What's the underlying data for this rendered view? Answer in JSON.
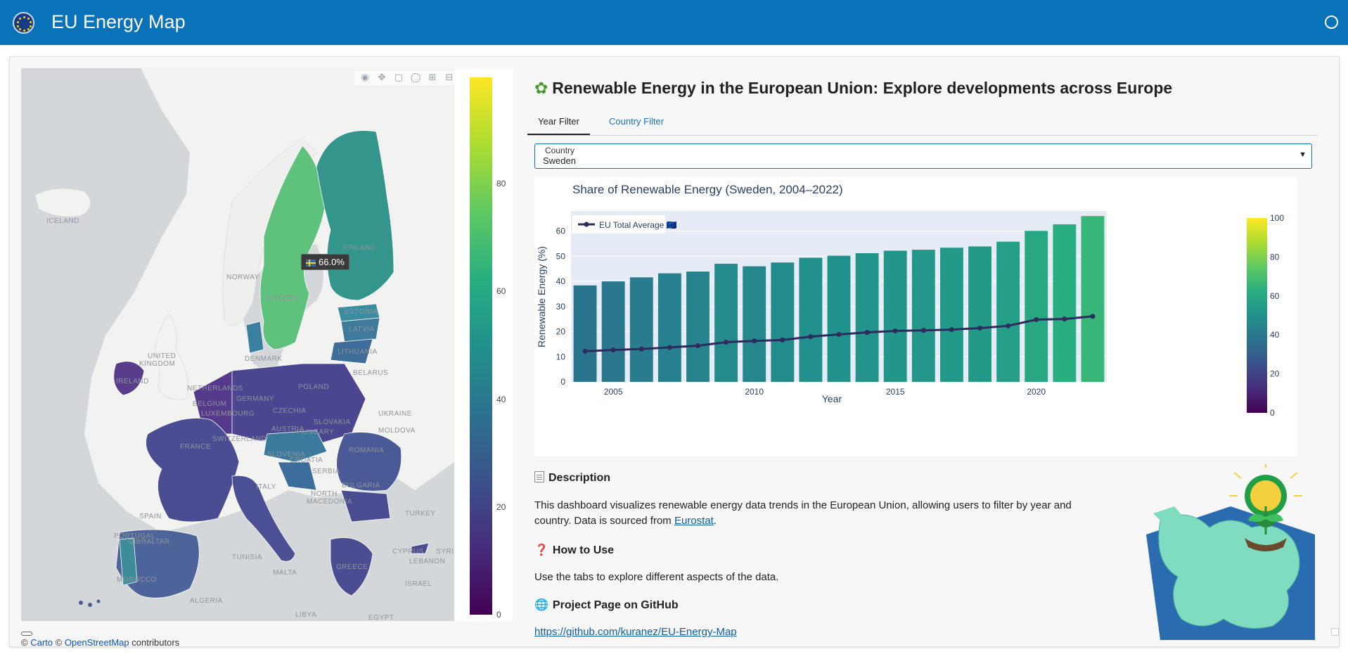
{
  "header": {
    "title": "EU Energy Map"
  },
  "map": {
    "tooltip_value": "66.0%",
    "labels": [
      "ICELAND",
      "NORWAY",
      "FINLAND",
      "SWEDEN",
      "UNITED",
      "KINGDOM",
      "IRELAND",
      "BELARUS",
      "POLAND",
      "GERMANY",
      "NETHERLANDS",
      "LUXEMBOURG",
      "CZECHIA",
      "UKRAINE",
      "FRANCE",
      "AUSTRIA",
      "HUNGARY",
      "ROMANIA",
      "MOLDOVA",
      "SERBIA",
      "BULGARIA",
      "NORTH",
      "MACEDONIA",
      "SPAIN",
      "PORTUGAL",
      "ITALY",
      "TURKEY",
      "GIBRALTAR",
      "TUNISIA",
      "MOROCCO",
      "ALGERIA",
      "LIBYA",
      "EGYPT",
      "ISRAEL",
      "LEBANON",
      "SYRIA",
      "CYPRUS",
      "ESTONIA",
      "LATVIA",
      "LITHUANIA",
      "DENMARK",
      "SLOVAKIA",
      "SLOVENIA",
      "CROATIA",
      "GREECE",
      "BELGIUM",
      "MALTA",
      "SWITZERLAND"
    ],
    "colorbar_ticks": [
      "80",
      "60",
      "40",
      "20",
      "0"
    ],
    "attribution": {
      "prefix": "©",
      "carto": "Carto",
      "middle": "©",
      "osm": "OpenStreetMap",
      "suffix": "contributors"
    },
    "modebar_icons": [
      "camera-icon",
      "pan-icon",
      "box-select-icon",
      "lasso-icon",
      "zoom-in-icon",
      "zoom-out-icon",
      "home-icon",
      "plotly-logo-icon"
    ]
  },
  "content": {
    "title": "Renewable Energy in the European Union: Explore developments across Europe",
    "tabs": [
      {
        "label": "Year Filter"
      },
      {
        "label": "Country Filter"
      }
    ],
    "country_select": {
      "legend": "Country",
      "value": "Sweden"
    },
    "description": {
      "heading": "Description",
      "text_before_link": "This dashboard visualizes renewable energy data trends in the European Union, allowing users to filter by year and country. Data is sourced from ",
      "link_text": "Eurostat",
      "text_after_link": "."
    },
    "how_to_use": {
      "heading": "How to Use",
      "text": "Use the tabs to explore different aspects of the data."
    },
    "project": {
      "heading": "Project Page on GitHub",
      "link": "https://github.com/kuranez/EU-Energy-Map"
    }
  },
  "colors": {
    "header_bg": "#0a72b9",
    "accent_tab": "#1a73b8",
    "link": "#0b5fa8",
    "line_series": "#2f2a5e"
  },
  "chart_data": {
    "type": "bar",
    "title": "Share of Renewable Energy (Sweden, 2004–2022)",
    "xlabel": "Year",
    "ylabel": "Renewable Energy (%)",
    "x": [
      2004,
      2005,
      2006,
      2007,
      2008,
      2009,
      2010,
      2011,
      2012,
      2013,
      2014,
      2015,
      2016,
      2017,
      2018,
      2019,
      2020,
      2021,
      2022
    ],
    "series": [
      {
        "values": [
          38.4,
          40.0,
          41.6,
          43.2,
          43.9,
          47.0,
          46.0,
          47.5,
          49.4,
          50.2,
          51.2,
          52.2,
          52.6,
          53.4,
          53.9,
          55.8,
          60.1,
          62.7,
          66.0
        ]
      },
      {
        "name": "EU Total Average 🇪🇺",
        "type": "line",
        "values": [
          12.2,
          12.7,
          13.1,
          13.7,
          14.4,
          15.8,
          16.3,
          16.7,
          18.0,
          18.9,
          19.7,
          20.3,
          20.5,
          20.8,
          21.4,
          22.3,
          24.8,
          25.0,
          26.1
        ]
      }
    ],
    "xticks": [
      2005,
      2010,
      2015,
      2020
    ],
    "yticks": [
      0,
      10,
      20,
      30,
      40,
      50,
      60
    ],
    "ylim": [
      0,
      68
    ],
    "colorbar": {
      "ticks": [
        0,
        20,
        40,
        60,
        80,
        100
      ],
      "range": [
        0,
        100
      ]
    },
    "legend_position": "top-left",
    "grid": true
  }
}
